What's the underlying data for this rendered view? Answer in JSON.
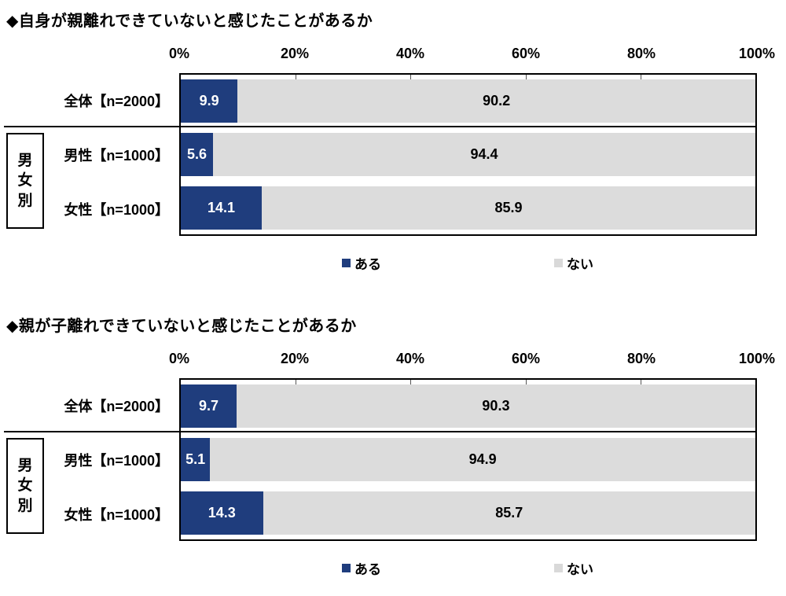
{
  "colors": {
    "yes": "#1f3d7d",
    "no": "#dcdcdc",
    "border": "#000000"
  },
  "group_label": "男女別",
  "chart_data": [
    {
      "type": "bar",
      "subtype": "horizontal-stacked",
      "title": "◆自身が親離れできていないと感じたことがあるか",
      "categories": [
        "全体【n=2000】",
        "男性【n=1000】",
        "女性【n=1000】"
      ],
      "series": [
        {
          "name": "ある",
          "color": "#1f3d7d",
          "values": [
            9.9,
            5.6,
            14.1
          ]
        },
        {
          "name": "ない",
          "color": "#dcdcdc",
          "values": [
            90.2,
            94.4,
            85.9
          ]
        }
      ],
      "xlim": [
        0,
        100
      ],
      "tick_labels": [
        "0%",
        "20%",
        "40%",
        "60%",
        "80%",
        "100%"
      ],
      "legend_position": "bottom",
      "group_label": "男女別",
      "grid": false
    },
    {
      "type": "bar",
      "subtype": "horizontal-stacked",
      "title": "◆親が子離れできていないと感じたことがあるか",
      "categories": [
        "全体【n=2000】",
        "男性【n=1000】",
        "女性【n=1000】"
      ],
      "series": [
        {
          "name": "ある",
          "color": "#1f3d7d",
          "values": [
            9.7,
            5.1,
            14.3
          ]
        },
        {
          "name": "ない",
          "color": "#dcdcdc",
          "values": [
            90.3,
            94.9,
            85.7
          ]
        }
      ],
      "xlim": [
        0,
        100
      ],
      "tick_labels": [
        "0%",
        "20%",
        "40%",
        "60%",
        "80%",
        "100%"
      ],
      "legend_position": "bottom",
      "group_label": "男女別",
      "grid": false
    }
  ]
}
